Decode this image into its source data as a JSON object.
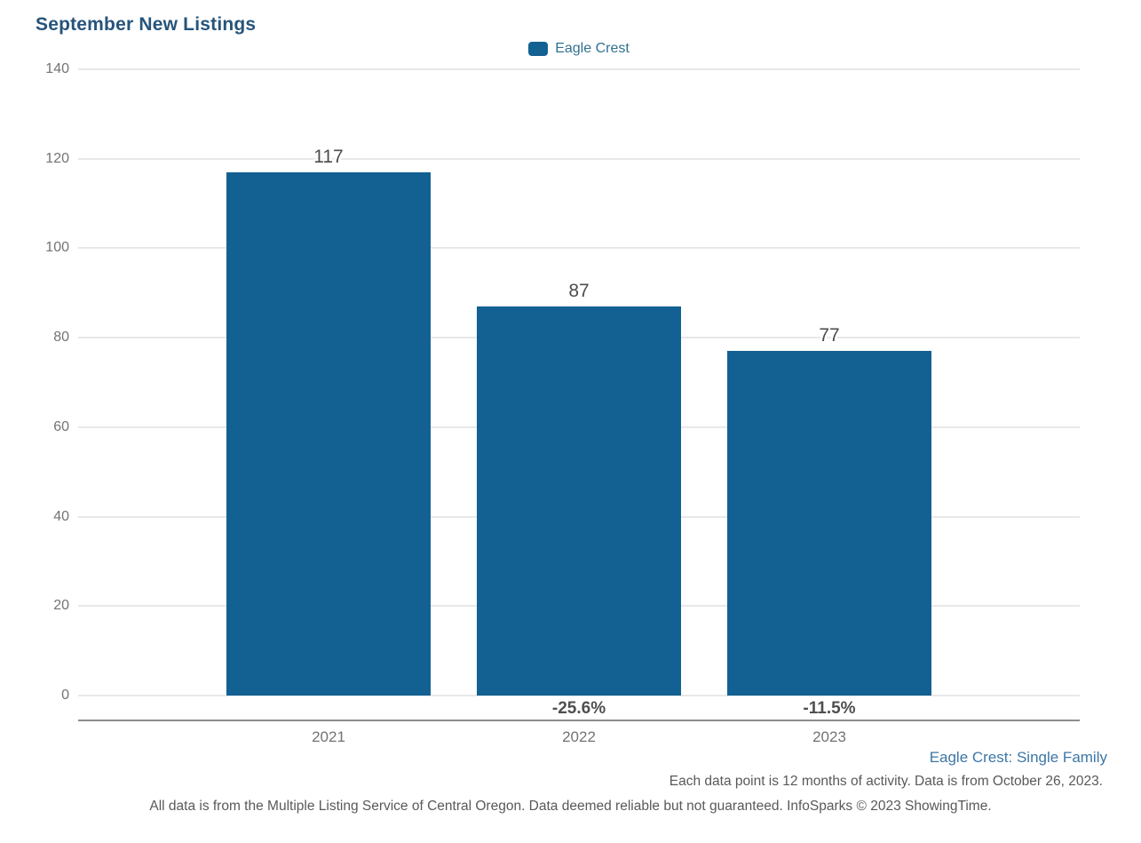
{
  "title": "September New Listings",
  "legend": {
    "label": "Eagle Crest",
    "marker_color": "#136192"
  },
  "chart_data": {
    "type": "bar",
    "title": "September New Listings",
    "categories": [
      "2021",
      "2022",
      "2023"
    ],
    "series": [
      {
        "name": "Eagle Crest",
        "values": [
          117,
          87,
          77
        ],
        "color": "#136192"
      }
    ],
    "value_labels": [
      "117",
      "87",
      "77"
    ],
    "pct_change_labels": [
      "",
      "-25.6%",
      "-11.5%"
    ],
    "xlabel": "",
    "ylabel": "",
    "ylim": [
      0,
      140
    ],
    "yticks": [
      0,
      20,
      40,
      60,
      80,
      100,
      120,
      140
    ],
    "grid": true,
    "legend_position": "top-center"
  },
  "footer": {
    "series_note": "Eagle Crest: Single Family",
    "data_note": "Each data point is 12 months of activity. Data is from October 26, 2023.",
    "disclaimer": "All data is from the Multiple Listing Service of Central Oregon. Data deemed reliable but not guaranteed. InfoSparks © 2023 ShowingTime."
  },
  "colors": {
    "bar": "#136192",
    "title_text": "#26547b",
    "legend_text": "#31708f",
    "tick_text": "#737373",
    "value_text": "#4d4d4d",
    "gridline": "#e8e8e8",
    "axis_line": "#8c8c8c",
    "footer_gray": "#595959",
    "footer_blue": "#3d76a6"
  }
}
